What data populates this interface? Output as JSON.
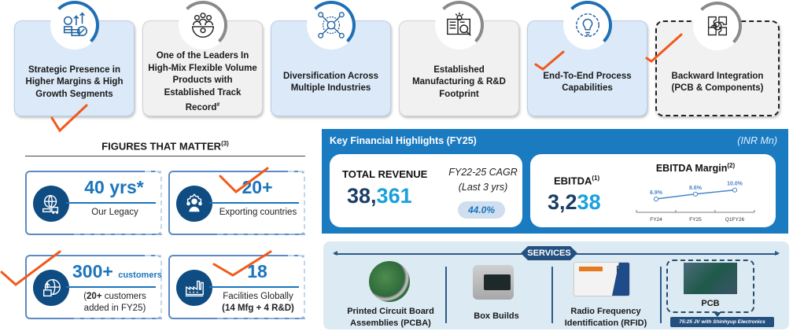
{
  "top_cards": [
    {
      "label": "Strategic Presence in Higher Margins & High Growth Segments",
      "icon": "money-growth-icon",
      "style": "blue"
    },
    {
      "label": "One of the Leaders In High-Mix Flexible Volume Products with Established Track Record",
      "footnote": "#",
      "icon": "team-gear-icon",
      "style": "gray"
    },
    {
      "label": "Diversification Across Multiple Industries",
      "icon": "network-icon",
      "style": "blue"
    },
    {
      "label": "Established Manufacturing & R&D Footprint",
      "icon": "book-research-icon",
      "style": "gray"
    },
    {
      "label": "End-To-End Process Capabilities",
      "icon": "brain-gear-icon",
      "style": "blue"
    },
    {
      "label": "Backward Integration (PCB & Components)",
      "icon": "puzzle-gear-icon",
      "style": "dashed"
    }
  ],
  "figures": {
    "title": "FIGURES THAT MATTER",
    "title_footnote": "(3)",
    "cards": [
      {
        "value": "40 yrs*",
        "sub": "Our Legacy",
        "icon": "globe-logistics-icon"
      },
      {
        "value": "20+",
        "sub": "Exporting countries",
        "icon": "people-gear-icon"
      },
      {
        "value": "300+",
        "value_suffix": "customers",
        "sub_bold": "20+",
        "sub_rest": " customers",
        "sub_line2": "added in FY25)",
        "sub_open": "(",
        "icon": "globe-box-icon"
      },
      {
        "value": "18",
        "sub": "Facilities Globally",
        "sub_line2": "(14 Mfg + 4 R&D)",
        "icon": "factory-icon"
      }
    ]
  },
  "financials": {
    "title": "Key Financial Highlights (FY25)",
    "unit": "(INR Mn)",
    "total_revenue": {
      "label": "TOTAL REVENUE",
      "value_dark": "38,",
      "value_light": "361"
    },
    "cagr": {
      "label_line1": "FY22-25 CAGR",
      "label_line2": "(Last 3 yrs)",
      "value": "44.0%"
    },
    "ebitda": {
      "label": "EBITDA",
      "footnote": "(1)",
      "value_dark": "3,2",
      "value_light": "38"
    },
    "margin_title": "EBITDA Margin",
    "margin_footnote": "(2)"
  },
  "chart_data": {
    "type": "line",
    "title": "EBITDA Margin",
    "categories": [
      "FY24",
      "FY25",
      "Q1FY26"
    ],
    "values": [
      6.9,
      8.6,
      10.0
    ],
    "data_labels": [
      "6.9%",
      "8.6%",
      "10.0%"
    ],
    "xlabel": "",
    "ylabel": "",
    "grid": false,
    "color": "#4a86c8"
  },
  "services": {
    "tag": "SERVICES",
    "items": [
      {
        "label_line1": "Printed Circuit Board",
        "label_line2": "Assemblies (PCBA)",
        "image": "pcba-image"
      },
      {
        "label_line1": "Box Builds",
        "label_line2": "",
        "image": "box-build-image"
      },
      {
        "label_line1": "Radio Frequency",
        "label_line2": "Identification (RFID)",
        "image": "rfid-card-image"
      },
      {
        "label_line1": "PCB",
        "label_line2": "",
        "image": "pcb-image"
      }
    ],
    "jv_note": "75:25 JV with Shinhyup Electronics"
  },
  "colors": {
    "brand_blue": "#1b7bc1",
    "navy": "#0f4c81",
    "accent_light": "#1aa0dc",
    "check_mark": "#f05a1a"
  }
}
